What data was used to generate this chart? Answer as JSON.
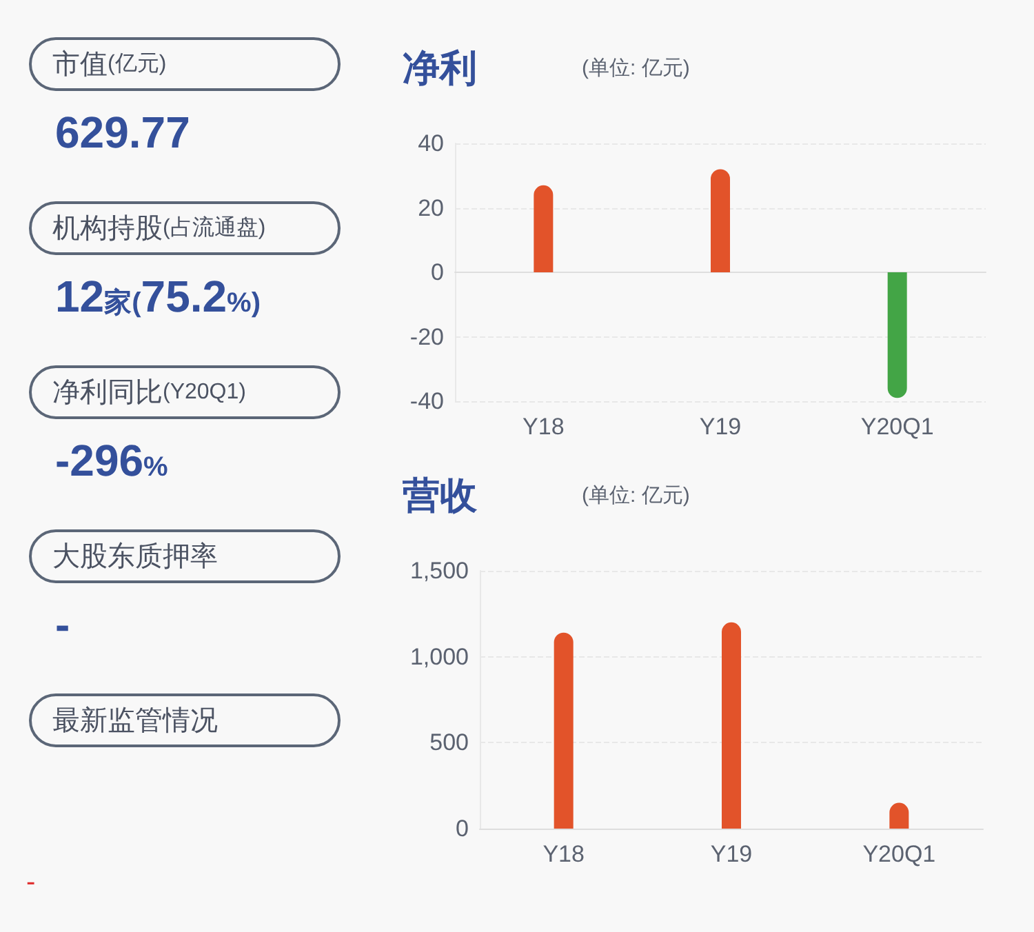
{
  "chart_data": [
    {
      "type": "other",
      "annotations": [
        "市值(亿元)",
        "629.77",
        "机构持股(占流通盘)",
        "12家(75.2%)",
        "净利同比(Y20Q1)",
        "-296%",
        "大股东质押率",
        "-",
        "最新监管情况",
        "-"
      ]
    },
    {
      "type": "bar",
      "title": "净利",
      "subtitle": "(单位: 亿元)",
      "categories": [
        "Y18",
        "Y19",
        "Y20Q1"
      ],
      "values": [
        27,
        32,
        -39
      ],
      "colors": [
        "#e2532a",
        "#e2532a",
        "#43a546"
      ],
      "ylim": [
        -40,
        40
      ],
      "yticks": [
        -40,
        -20,
        0,
        20,
        40
      ],
      "grid": "y"
    },
    {
      "type": "bar",
      "title": "营收",
      "subtitle": "(单位: 亿元)",
      "categories": [
        "Y18",
        "Y19",
        "Y20Q1"
      ],
      "values": [
        1140,
        1200,
        150
      ],
      "colors": [
        "#e2532a",
        "#e2532a",
        "#e2532a"
      ],
      "ylim": [
        0,
        1500
      ],
      "yticks": [
        0,
        500,
        {
          "value": 1000,
          "label": "1,000"
        },
        {
          "value": 1500,
          "label": "1,500"
        }
      ],
      "grid": "y"
    }
  ]
}
